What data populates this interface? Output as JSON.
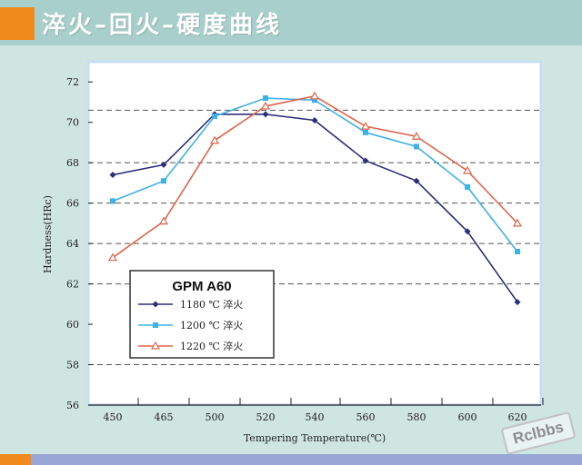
{
  "header": {
    "title": "淬火–回火–硬度曲线"
  },
  "colors": {
    "accent": "#f08a1c",
    "plot_background": "#ffffff",
    "plot_edge": "#c7dff2",
    "series_1180": "#2d2f7a",
    "series_1200": "#3fb1e5",
    "series_1220": "#e0634a"
  },
  "watermark": {
    "text": "Rclbbs"
  },
  "chart_data": {
    "type": "line",
    "title": "",
    "xlabel": "Tempering Temperature(℃)",
    "ylabel": "Hardness(HRc)",
    "x": [
      450,
      465,
      500,
      520,
      540,
      560,
      580,
      600,
      620
    ],
    "x_tick_labels": [
      "450",
      "465",
      "500",
      "520",
      "540",
      "560",
      "580",
      "600",
      "620"
    ],
    "y_ticks": [
      56,
      58,
      60,
      62,
      64,
      66,
      68,
      70,
      72
    ],
    "ylim": [
      56,
      73
    ],
    "gridlines": "dashed horizontal",
    "legend": {
      "title": "GPM A60",
      "placement": "lower-left",
      "entries": [
        "1180 ℃  淬火",
        "1200 ℃  淬火",
        "1220 ℃  淬火"
      ]
    },
    "series": [
      {
        "name": "1180 ℃  淬火",
        "marker": "diamond",
        "values": [
          67.4,
          67.9,
          70.4,
          70.4,
          70.1,
          68.1,
          67.1,
          64.6,
          61.1
        ]
      },
      {
        "name": "1200 ℃  淬火",
        "marker": "square",
        "values": [
          66.1,
          67.1,
          70.3,
          71.2,
          71.1,
          69.5,
          68.8,
          66.8,
          63.6
        ]
      },
      {
        "name": "1220 ℃  淬火",
        "marker": "triangle",
        "values": [
          63.3,
          65.1,
          69.1,
          70.8,
          71.3,
          69.8,
          69.3,
          67.6,
          65.0
        ]
      }
    ]
  }
}
